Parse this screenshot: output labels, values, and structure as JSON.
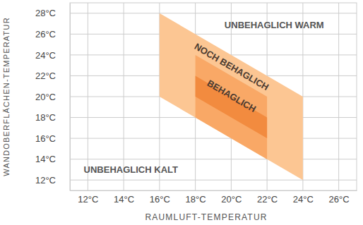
{
  "chart_data": {
    "type": "area",
    "x_label": "RAUMLUFT-TEMPERATUR",
    "y_label": "WANDOBERFLÄCHEN-TEMPERATUR",
    "xlim": [
      11,
      27
    ],
    "ylim": [
      11,
      29
    ],
    "xticks": [
      {
        "value": 12,
        "label": "12°C"
      },
      {
        "value": 14,
        "label": "14°C"
      },
      {
        "value": 16,
        "label": "16°C"
      },
      {
        "value": 18,
        "label": "18°C"
      },
      {
        "value": 20,
        "label": "20°C"
      },
      {
        "value": 22,
        "label": "22°C"
      },
      {
        "value": 24,
        "label": "24°C"
      },
      {
        "value": 26,
        "label": "26°C"
      }
    ],
    "yticks": [
      {
        "value": 12,
        "label": "12°C"
      },
      {
        "value": 14,
        "label": "14°C"
      },
      {
        "value": 16,
        "label": "16°C"
      },
      {
        "value": 18,
        "label": "18°C"
      },
      {
        "value": 20,
        "label": "20°C"
      },
      {
        "value": 22,
        "label": "22°C"
      },
      {
        "value": 24,
        "label": "24°C"
      },
      {
        "value": 26,
        "label": "26°C"
      },
      {
        "value": 28,
        "label": "28°C"
      }
    ],
    "grid": true,
    "series": [
      {
        "color": "#fcc693",
        "x": [
          16,
          16,
          24,
          24
        ],
        "values": [
          20,
          28,
          20,
          12
        ]
      },
      {
        "label": "NOCH BEHAGLICH",
        "color": "#f9a866",
        "x": [
          18,
          18,
          22,
          22
        ],
        "values": [
          18,
          24,
          20,
          14
        ]
      },
      {
        "label": "BEHAGLICH",
        "color": "#f28b3f",
        "x": [
          18,
          18,
          22,
          22
        ],
        "values": [
          20,
          22,
          18,
          16
        ]
      }
    ],
    "annotations": [
      {
        "text": "UNBEHAGLICH WARM"
      },
      {
        "text": "UNBEHAGLICH KALT"
      }
    ]
  }
}
